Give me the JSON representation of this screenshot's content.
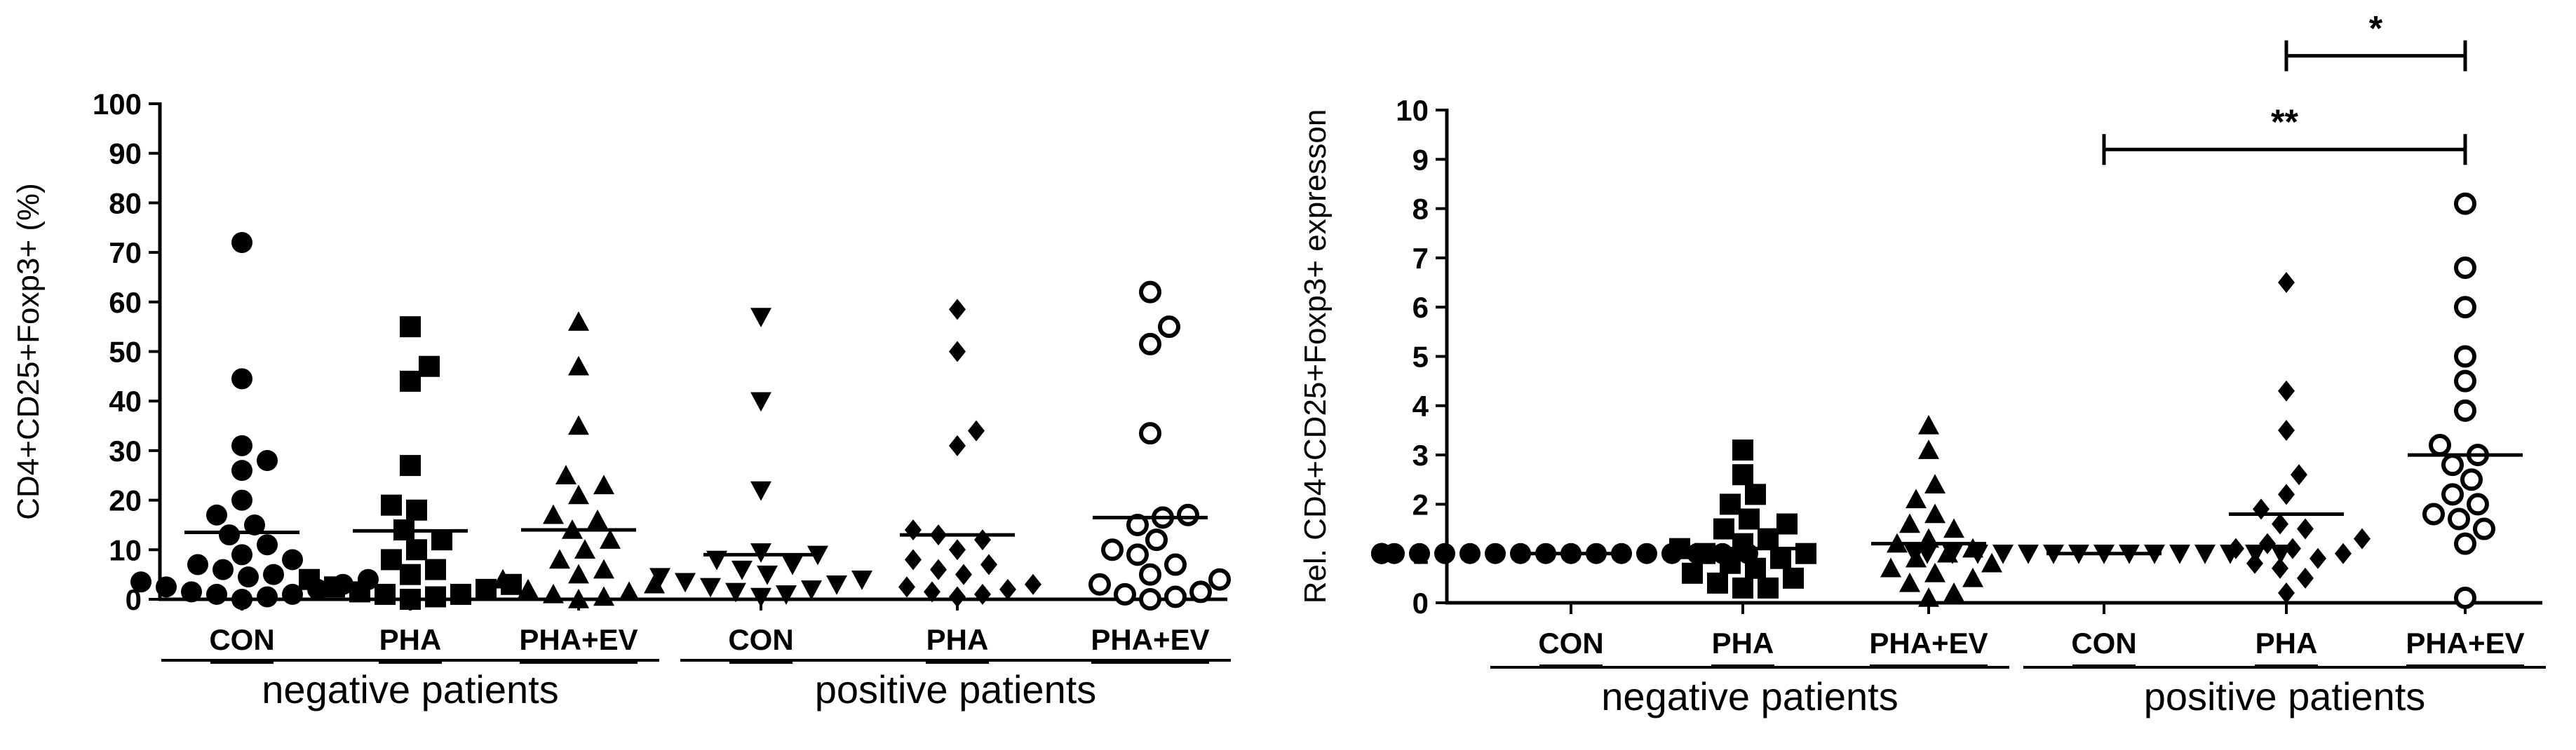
{
  "chart_data": [
    {
      "type": "scatter",
      "ylabel": "CD4+CD25+Foxp3+ (%)",
      "ylim": [
        0,
        100
      ],
      "yticks": [
        0,
        10,
        20,
        30,
        40,
        50,
        60,
        70,
        80,
        90,
        100
      ],
      "categories": [
        "CON",
        "PHA",
        "PHA+EV",
        "CON",
        "PHA",
        "PHA+EV"
      ],
      "groups": [
        {
          "label": "negative patients",
          "from": 0,
          "to": 2
        },
        {
          "label": "positive patients",
          "from": 3,
          "to": 5
        }
      ],
      "series": [
        {
          "name": "negative CON",
          "marker": "circle",
          "median": 13.5,
          "values": [
            72,
            44.5,
            31,
            28,
            26,
            20,
            17,
            15,
            13,
            11,
            9,
            8,
            7,
            6,
            5,
            4.5,
            4,
            3.5,
            3,
            2.5,
            2,
            1.5,
            1,
            1,
            0.5,
            0
          ]
        },
        {
          "name": "negative PHA",
          "marker": "square",
          "median": 13.8,
          "values": [
            55,
            47,
            44,
            27,
            19,
            18,
            14,
            12,
            10,
            8,
            6,
            5,
            4,
            3,
            2.5,
            2,
            1.5,
            1,
            1,
            0.5,
            0
          ]
        },
        {
          "name": "negative PHA+EV",
          "marker": "triangle-up",
          "median": 14,
          "values": [
            56,
            47,
            35,
            25,
            23,
            21,
            17,
            16,
            14,
            12,
            10,
            8,
            6,
            5,
            4,
            3,
            2,
            1.5,
            1,
            0.5,
            0
          ]
        },
        {
          "name": "positive CON",
          "marker": "triangle-down",
          "median": 9,
          "values": [
            57,
            40,
            22,
            9.5,
            9,
            8,
            7,
            6,
            5,
            4.5,
            4,
            3.5,
            3,
            2.5,
            2,
            1.5,
            1,
            0.5
          ]
        },
        {
          "name": "positive PHA",
          "marker": "diamond",
          "median": 13,
          "values": [
            58.5,
            50,
            34,
            31,
            14,
            13,
            12,
            10,
            8,
            7,
            6,
            5,
            3,
            2.5,
            2,
            1.5,
            1,
            0.5
          ]
        },
        {
          "name": "positive PHA+EV",
          "marker": "open-circle",
          "median": 16.5,
          "values": [
            62,
            55,
            51.5,
            33.5,
            17,
            16.5,
            15,
            12,
            10,
            9,
            7,
            5,
            4,
            3,
            1.5,
            1,
            0.5,
            0
          ]
        }
      ]
    },
    {
      "type": "scatter",
      "ylabel": "Rel. CD4+CD25+Foxp3+ expresson",
      "ylim": [
        0,
        10
      ],
      "yticks": [
        0,
        1,
        2,
        3,
        4,
        5,
        6,
        7,
        8,
        9,
        10
      ],
      "categories": [
        "CON",
        "PHA",
        "PHA+EV",
        "CON",
        "PHA",
        "PHA+EV"
      ],
      "groups": [
        {
          "label": "negative patients",
          "from": 0,
          "to": 2
        },
        {
          "label": "positive patients",
          "from": 3,
          "to": 5
        }
      ],
      "significance": [
        {
          "label": "*",
          "from": 4,
          "to": 5,
          "y": 11.1
        },
        {
          "label": "**",
          "from": 3,
          "to": 5,
          "y": 9.2
        }
      ],
      "series": [
        {
          "name": "negative CON",
          "marker": "circle",
          "median": 1,
          "values": [
            1,
            1,
            1,
            1,
            1,
            1,
            1,
            1,
            1,
            1,
            1,
            1,
            1,
            1,
            1,
            1,
            1,
            1,
            1,
            1,
            1,
            1,
            1
          ]
        },
        {
          "name": "negative PHA",
          "marker": "square",
          "median": 1.1,
          "values": [
            3.1,
            2.6,
            2.2,
            2,
            1.7,
            1.6,
            1.5,
            1.3,
            1.2,
            1.1,
            1,
            1,
            0.9,
            0.8,
            0.7,
            0.6,
            0.5,
            0.4,
            0.3,
            0.3
          ]
        },
        {
          "name": "negative PHA+EV",
          "marker": "triangle-up",
          "median": 1.2,
          "values": [
            3.6,
            3.1,
            2.4,
            2.1,
            1.8,
            1.6,
            1.5,
            1.3,
            1.2,
            1.1,
            1,
            0.9,
            0.8,
            0.7,
            0.6,
            0.5,
            0.4,
            0.2,
            0.1
          ]
        },
        {
          "name": "positive CON",
          "marker": "triangle-down",
          "median": 1,
          "values": [
            1,
            1,
            1,
            1,
            1,
            1,
            1,
            1,
            1,
            1,
            1,
            1,
            1,
            1,
            1,
            1,
            1,
            1
          ]
        },
        {
          "name": "positive PHA",
          "marker": "diamond",
          "median": 1.8,
          "values": [
            6.5,
            4.3,
            3.5,
            2.6,
            2.2,
            1.9,
            1.6,
            1.5,
            1.3,
            1.2,
            1.1,
            1.1,
            1,
            0.9,
            0.8,
            0.7,
            0.5,
            0.2
          ]
        },
        {
          "name": "positive PHA+EV",
          "marker": "open-circle",
          "median": 3,
          "values": [
            8.1,
            6.8,
            6,
            5,
            4.5,
            3.9,
            3.2,
            3,
            2.8,
            2.5,
            2.2,
            2,
            1.8,
            1.7,
            1.5,
            1.2,
            0.1
          ]
        }
      ]
    }
  ]
}
